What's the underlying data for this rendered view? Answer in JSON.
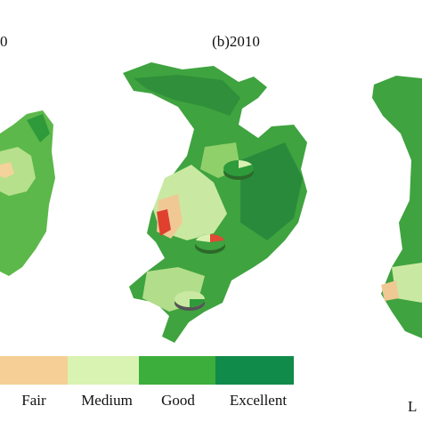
{
  "panels": [
    {
      "title": "0"
    },
    {
      "title": "(b)2010"
    }
  ],
  "legend": {
    "items": [
      "Fair",
      "Medium",
      "Good",
      "Excellent"
    ]
  },
  "corner_text": "L"
}
